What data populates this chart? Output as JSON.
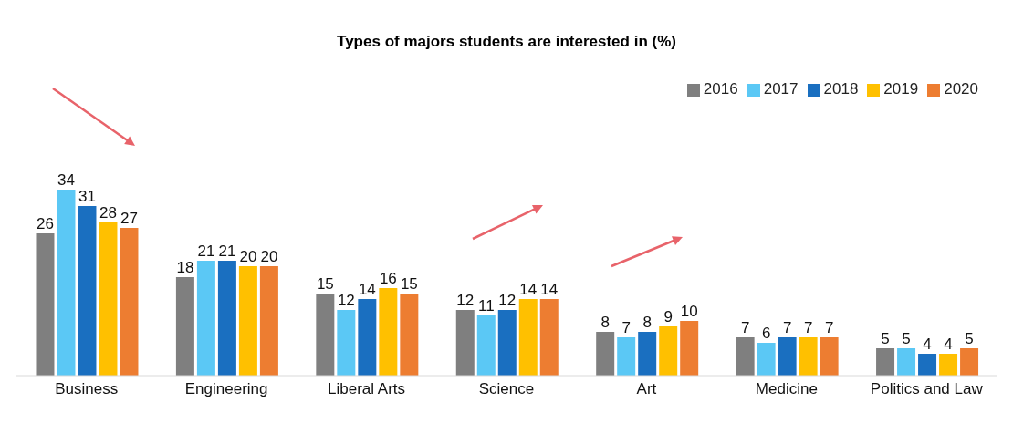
{
  "chart_data": {
    "type": "bar",
    "title": "Types of majors students are interested in (%)",
    "categories": [
      "Business",
      "Engineering",
      "Liberal Arts",
      "Science",
      "Art",
      "Medicine",
      "Politics and Law"
    ],
    "series": [
      {
        "name": "2016",
        "color": "#7f7f7f",
        "values": [
          26,
          18,
          15,
          12,
          8,
          7,
          5
        ]
      },
      {
        "name": "2017",
        "color": "#5bc8f5",
        "values": [
          34,
          21,
          12,
          11,
          7,
          6,
          5
        ]
      },
      {
        "name": "2018",
        "color": "#1a6fc0",
        "values": [
          31,
          21,
          14,
          12,
          8,
          7,
          4
        ]
      },
      {
        "name": "2019",
        "color": "#ffc000",
        "values": [
          28,
          20,
          16,
          14,
          9,
          7,
          4
        ]
      },
      {
        "name": "2020",
        "color": "#ed7d31",
        "values": [
          27,
          20,
          15,
          14,
          10,
          7,
          5
        ]
      }
    ],
    "data_labels": true,
    "legend": "top right",
    "grid": false
  }
}
